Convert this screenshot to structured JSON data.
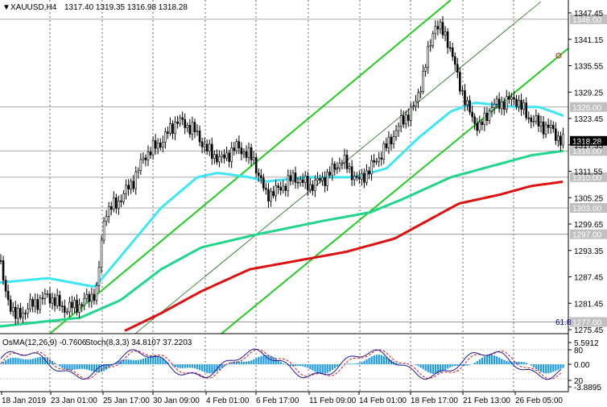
{
  "window": {
    "symbol": "XAUUSD,H4",
    "ohlc": "1317.40 1319.35 1316.98 1318.28",
    "icon": "chevron-down-icon"
  },
  "price_axis": {
    "ticks": [
      "1347.45",
      "1341.15",
      "1335.55",
      "1329.25",
      "1323.45",
      "1317.35",
      "1311.55",
      "1305.25",
      "1299.65",
      "1293.35",
      "1287.45",
      "1281.45",
      "1275.45"
    ],
    "tags": [
      {
        "label": "1346.00",
        "value": 1346.0,
        "color": "#c0c0c0"
      },
      {
        "label": "1326.00",
        "value": 1326.0,
        "color": "#c0c0c0"
      },
      {
        "label": "1318.28",
        "value": 1318.28,
        "color": "#000000"
      },
      {
        "label": "1316.00",
        "value": 1316.0,
        "color": "#c0c0c0"
      },
      {
        "label": "1310.00",
        "value": 1310.0,
        "color": "#c0c0c0"
      },
      {
        "label": "1303.00",
        "value": 1303.0,
        "color": "#c0c0c0"
      },
      {
        "label": "1297.00",
        "value": 1297.0,
        "color": "#c0c0c0"
      },
      {
        "label": "1277.00",
        "value": 1277.0,
        "color": "#c0c0c0"
      }
    ],
    "fib_label": "61.8"
  },
  "indicator": {
    "label_osma": "OsMA(12,26,9) -0.7606",
    "label_stoch": "Stoch(8,3,3) 34.8107 37.2203",
    "ticks": [
      "5.5912",
      "80",
      "0.00",
      "20",
      "-3.8895"
    ]
  },
  "time_axis": {
    "labels": [
      "18 Jan 2019",
      "23 Jan 01:00",
      "25 Jan 17:00",
      "30 Jan 09:00",
      "4 Feb 01:00",
      "6 Feb 17:00",
      "11 Feb 09:00",
      "14 Feb 01:00",
      "18 Feb 17:00",
      "21 Feb 13:00",
      "26 Feb 05:00"
    ]
  },
  "chart_data": {
    "type": "candlestick",
    "ylim": [
      1275.45,
      1347.45
    ],
    "colors": {
      "ema50": "#3ee6f5",
      "ema144": "#1fd68a",
      "ema200": "#e01010",
      "channel": "#22cc22",
      "candles": "#000000",
      "hist": "#1f9be6",
      "stoch_main": "#1c1c9c",
      "stoch_signal": "#e01010"
    }
  }
}
